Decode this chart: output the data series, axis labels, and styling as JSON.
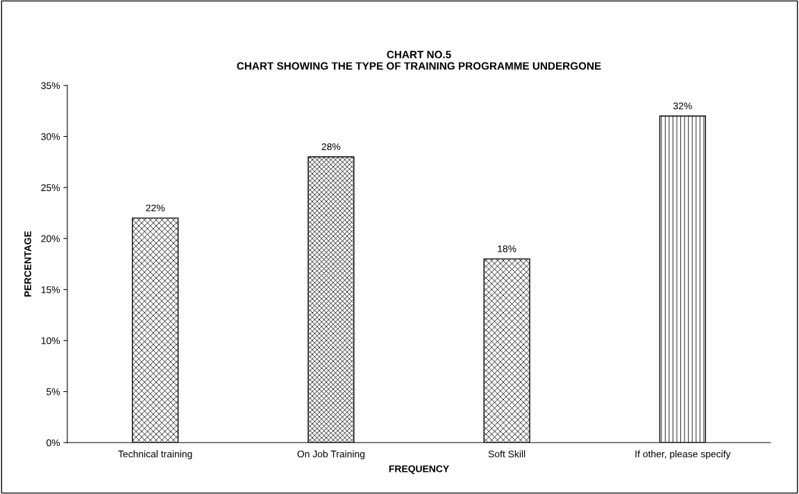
{
  "chart_data": {
    "type": "bar",
    "title": "CHART NO.5\nCHART SHOWING THE TYPE OF TRAINING PROGRAMME UNDERGONE",
    "xlabel": "FREQUENCY",
    "ylabel": "PERCENTAGE",
    "categories": [
      "Technical training",
      "On Job Training",
      "Soft Skill",
      "If other, please specify"
    ],
    "values": [
      22,
      28,
      18,
      32
    ],
    "value_labels": [
      "22%",
      "28%",
      "18%",
      "32%"
    ],
    "color": "#000000",
    "ylim": [
      0,
      35
    ],
    "yticks": [
      {
        "value": 0,
        "label": "0%"
      },
      {
        "value": 5,
        "label": "5%"
      },
      {
        "value": 10,
        "label": "10%"
      },
      {
        "value": 15,
        "label": "15%"
      },
      {
        "value": 20,
        "label": "20%"
      },
      {
        "value": 25,
        "label": "25%"
      },
      {
        "value": 30,
        "label": "30%"
      },
      {
        "value": 35,
        "label": "35%"
      }
    ],
    "grid": false,
    "legend": false
  }
}
